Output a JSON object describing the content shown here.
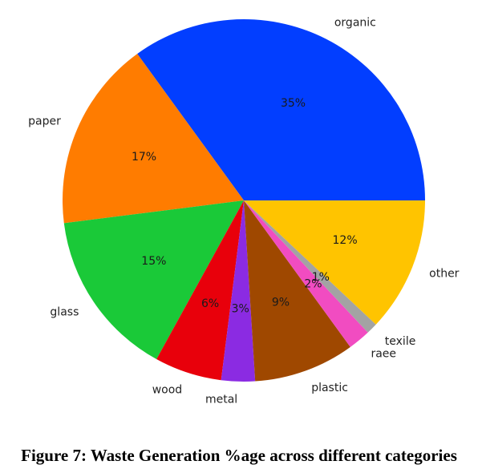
{
  "caption": "Figure 7: Waste Generation %age across different categories",
  "chart_data": {
    "type": "pie",
    "title": "",
    "start_angle_deg": 0,
    "direction": "counterclockwise",
    "slices": [
      {
        "label": "organic",
        "value": 35,
        "pct_label": "35%",
        "color": "#023eff"
      },
      {
        "label": "paper",
        "value": 17,
        "pct_label": "17%",
        "color": "#ff7c00"
      },
      {
        "label": "glass",
        "value": 15,
        "pct_label": "15%",
        "color": "#1ac938"
      },
      {
        "label": "wood",
        "value": 6,
        "pct_label": "6%",
        "color": "#e8000b"
      },
      {
        "label": "metal",
        "value": 3,
        "pct_label": "3%",
        "color": "#8b2be2"
      },
      {
        "label": "plastic",
        "value": 9,
        "pct_label": "9%",
        "color": "#9f4800"
      },
      {
        "label": "raee",
        "value": 2,
        "pct_label": "2%",
        "color": "#f14cc1"
      },
      {
        "label": "texile",
        "value": 1,
        "pct_label": "1%",
        "color": "#a3a3a3"
      },
      {
        "label": "other",
        "value": 12,
        "pct_label": "12%",
        "color": "#ffc400"
      }
    ]
  }
}
